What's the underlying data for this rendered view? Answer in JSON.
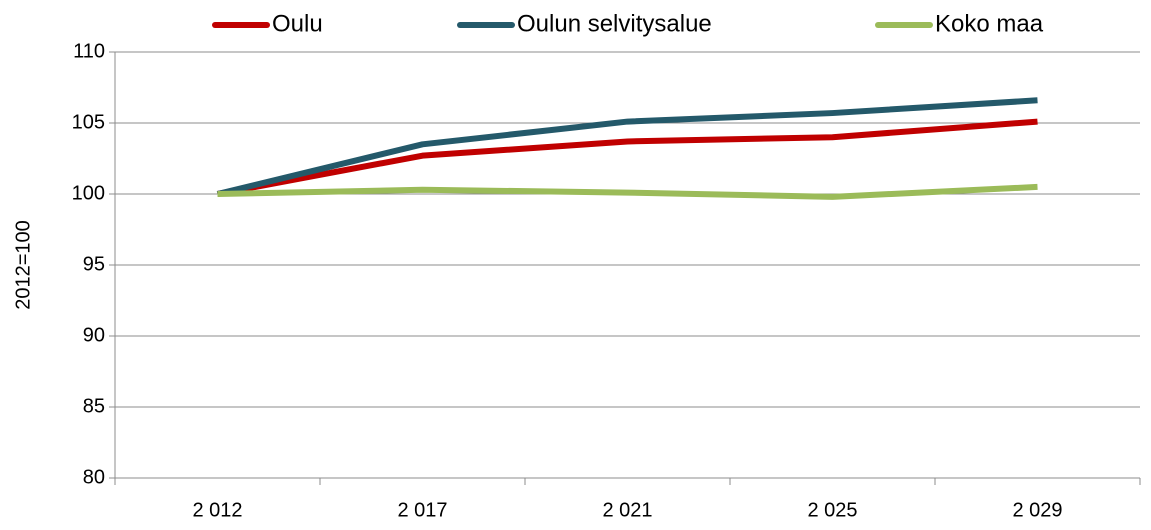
{
  "chart_data": {
    "type": "line",
    "y_label": "2012=100",
    "categories": [
      "2 012",
      "2 017",
      "2 021",
      "2 025",
      "2 029"
    ],
    "series": [
      {
        "name": "Oulu",
        "color": "#c00000",
        "values": [
          100,
          102.7,
          103.7,
          104.0,
          105.1
        ]
      },
      {
        "name": "Oulun selvitysalue",
        "color": "#24596a",
        "values": [
          100,
          103.5,
          105.1,
          105.7,
          106.6
        ]
      },
      {
        "name": "Koko maa",
        "color": "#9bbb59",
        "values": [
          100,
          100.3,
          100.1,
          99.8,
          100.5
        ]
      }
    ],
    "ylim": [
      80,
      110
    ],
    "yticks": [
      80,
      85,
      90,
      95,
      100,
      105,
      110
    ],
    "grid": true,
    "legend": "top"
  }
}
